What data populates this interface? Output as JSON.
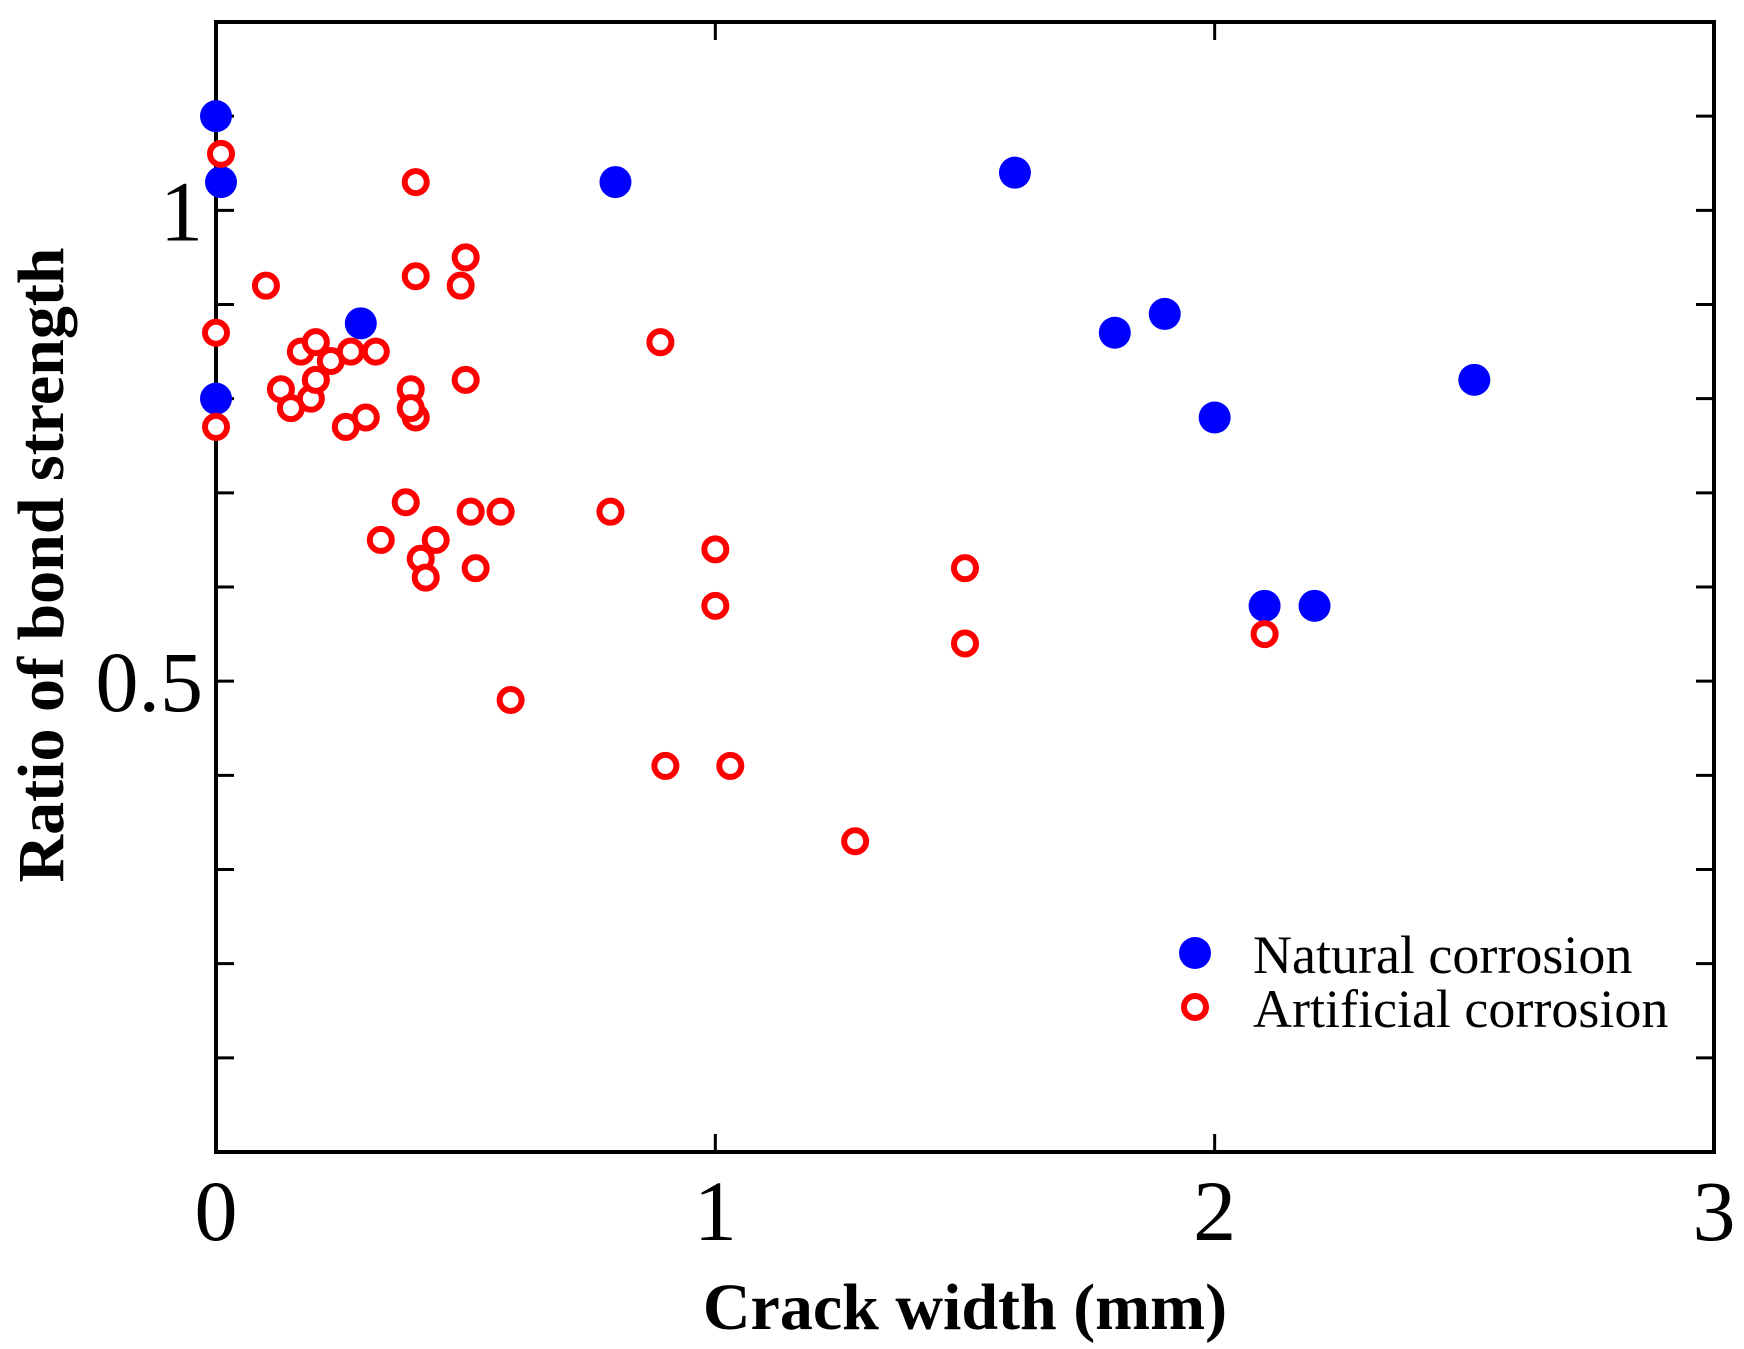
{
  "chart_data": {
    "type": "scatter",
    "title": "",
    "xlabel": "Crack width (mm)",
    "ylabel": "Ratio of bond strength",
    "xlim": [
      0,
      3
    ],
    "ylim": [
      0,
      1.2
    ],
    "x_ticks": [
      0,
      1,
      2,
      3
    ],
    "x_tick_labels": [
      "0",
      "1",
      "2",
      "3"
    ],
    "y_ticks": [
      0.5,
      1
    ],
    "y_tick_labels": [
      "0.5",
      "1"
    ],
    "y_minor_step": 0.1,
    "grid": false,
    "legend_position": "bottom-right",
    "series": [
      {
        "name": "Natural corrosion",
        "marker": "filled-circle",
        "color": "#0000ff",
        "x": [
          0.0,
          0.01,
          0.29,
          0.8,
          1.6,
          1.8,
          1.9,
          2.0,
          2.1,
          2.2,
          2.52,
          0.0
        ],
        "y": [
          1.1,
          1.03,
          0.88,
          1.03,
          1.04,
          0.87,
          0.89,
          0.78,
          0.58,
          0.58,
          0.82,
          0.8
        ]
      },
      {
        "name": "Artificial corrosion",
        "marker": "open-circle",
        "color": "#ff0000",
        "x": [
          0.01,
          0.0,
          0.0,
          0.1,
          0.13,
          0.15,
          0.17,
          0.19,
          0.2,
          0.23,
          0.26,
          0.27,
          0.3,
          0.32,
          0.33,
          0.38,
          0.39,
          0.4,
          0.4,
          0.4,
          0.41,
          0.42,
          0.44,
          0.49,
          0.5,
          0.5,
          0.51,
          0.52,
          0.57,
          0.59,
          0.79,
          0.89,
          0.9,
          1.0,
          1.0,
          1.03,
          1.28,
          1.5,
          1.5,
          2.1,
          0.2,
          0.39
        ],
        "y": [
          1.06,
          0.87,
          0.77,
          0.92,
          0.81,
          0.79,
          0.85,
          0.8,
          0.82,
          0.84,
          0.77,
          0.85,
          0.78,
          0.85,
          0.65,
          0.69,
          0.81,
          1.03,
          0.93,
          0.78,
          0.63,
          0.61,
          0.65,
          0.92,
          0.95,
          0.82,
          0.68,
          0.62,
          0.68,
          0.48,
          0.68,
          0.86,
          0.41,
          0.64,
          0.58,
          0.41,
          0.33,
          0.62,
          0.54,
          0.55,
          0.86,
          0.79
        ]
      }
    ]
  }
}
